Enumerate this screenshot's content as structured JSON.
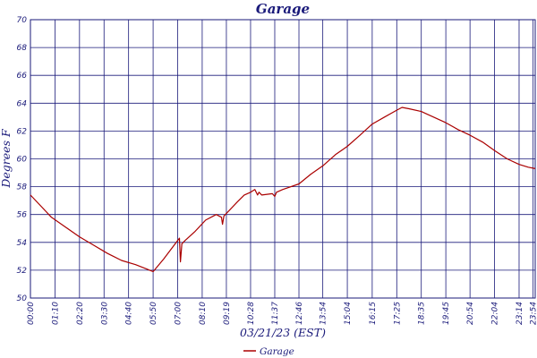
{
  "chart_data": {
    "type": "line",
    "title": "Garage",
    "xlabel": "03/21/23 (EST)",
    "ylabel": "Degrees F",
    "ylim": [
      50,
      70
    ],
    "yticks": [
      50,
      52,
      54,
      56,
      58,
      60,
      62,
      64,
      66,
      68,
      70
    ],
    "xlim": [
      0,
      1440
    ],
    "xticks": [
      {
        "label": "00:00",
        "t": 0
      },
      {
        "label": "01:10",
        "t": 70
      },
      {
        "label": "02:20",
        "t": 140
      },
      {
        "label": "03:30",
        "t": 210
      },
      {
        "label": "04:40",
        "t": 280
      },
      {
        "label": "05:50",
        "t": 350
      },
      {
        "label": "07:00",
        "t": 420
      },
      {
        "label": "08:10",
        "t": 490
      },
      {
        "label": "09:19",
        "t": 559
      },
      {
        "label": "10:28",
        "t": 628
      },
      {
        "label": "11:37",
        "t": 697
      },
      {
        "label": "12:46",
        "t": 766
      },
      {
        "label": "13:54",
        "t": 834
      },
      {
        "label": "15:04",
        "t": 904
      },
      {
        "label": "16:15",
        "t": 975
      },
      {
        "label": "17:25",
        "t": 1045
      },
      {
        "label": "18:35",
        "t": 1115
      },
      {
        "label": "19:45",
        "t": 1185
      },
      {
        "label": "20:54",
        "t": 1254
      },
      {
        "label": "22:04",
        "t": 1324
      },
      {
        "label": "23:14",
        "t": 1394
      },
      {
        "label": "23:54",
        "t": 1434
      }
    ],
    "grid": true,
    "legend": "bottom-center",
    "series": [
      {
        "name": "Garage",
        "color": "#aa0000",
        "x": [
          0,
          30,
          60,
          100,
          140,
          180,
          220,
          260,
          300,
          330,
          345,
          350,
          380,
          410,
          425,
          428,
          432,
          440,
          470,
          500,
          530,
          545,
          548,
          552,
          560,
          590,
          610,
          628,
          640,
          648,
          652,
          660,
          690,
          697,
          702,
          720,
          766,
          800,
          834,
          870,
          904,
          940,
          975,
          1010,
          1045,
          1060,
          1080,
          1115,
          1150,
          1185,
          1220,
          1254,
          1290,
          1324,
          1360,
          1394,
          1420,
          1440
        ],
        "y": [
          57.4,
          56.6,
          55.8,
          55.1,
          54.4,
          53.8,
          53.2,
          52.7,
          52.4,
          52.1,
          51.95,
          51.9,
          52.8,
          53.8,
          54.3,
          52.6,
          53.9,
          54.1,
          54.8,
          55.6,
          56.0,
          55.8,
          55.3,
          55.9,
          56.1,
          56.9,
          57.4,
          57.6,
          57.8,
          57.4,
          57.6,
          57.4,
          57.5,
          57.3,
          57.6,
          57.8,
          58.2,
          58.9,
          59.5,
          60.3,
          60.9,
          61.7,
          62.5,
          63.0,
          63.5,
          63.7,
          63.6,
          63.4,
          63.0,
          62.6,
          62.1,
          61.7,
          61.2,
          60.6,
          60.0,
          59.6,
          59.4,
          59.3
        ]
      }
    ]
  }
}
